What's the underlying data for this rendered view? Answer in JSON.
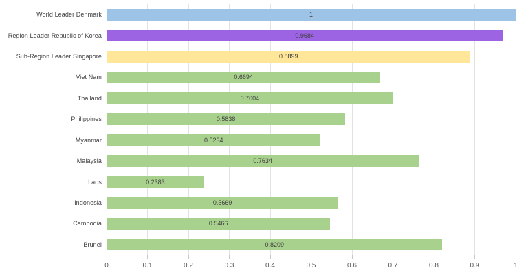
{
  "chart_data": {
    "type": "bar",
    "orientation": "horizontal",
    "title": "",
    "xlabel": "",
    "ylabel": "",
    "xlim": [
      0,
      1
    ],
    "grid": true,
    "legend": false,
    "categories": [
      "World Leader Denmark",
      "Region Leader Republic of Korea",
      "Sub-Region Leader Singapore",
      "Viet Nam",
      "Thailand",
      "Philippines",
      "Myanmar",
      "Malaysia",
      "Laos",
      "Indonesia",
      "Cambodia",
      "Brunei"
    ],
    "values": [
      1,
      0.9684,
      0.8899,
      0.6694,
      0.7004,
      0.5838,
      0.5234,
      0.7634,
      0.2383,
      0.5669,
      0.5466,
      0.8209
    ],
    "data_labels": [
      "1",
      "0.9684",
      "0.8899",
      "0.6694",
      "0.7004",
      "0.5838",
      "0.5234",
      "0.7634",
      "0.2383",
      "0.5669",
      "0.5466",
      "0.8209"
    ],
    "bar_colors": [
      "#9DC3E6",
      "#9C63E2",
      "#FFE699",
      "#A9D18E",
      "#A9D18E",
      "#A9D18E",
      "#A9D18E",
      "#A9D18E",
      "#A9D18E",
      "#A9D18E",
      "#A9D18E",
      "#A9D18E"
    ],
    "x_ticks": [
      "0",
      "0.1",
      "0.2",
      "0.3",
      "0.4",
      "0.5",
      "0.6",
      "0.7",
      "0.8",
      "0.9",
      "1"
    ],
    "style_colors": {
      "gridline": "#e2e2e2",
      "tick_mark": "#c9c9c9",
      "data_label_text": "#3f3f3f",
      "category_label_text": "#3f3f3f",
      "axis_label_text": "#595959",
      "background": "#ffffff"
    }
  }
}
